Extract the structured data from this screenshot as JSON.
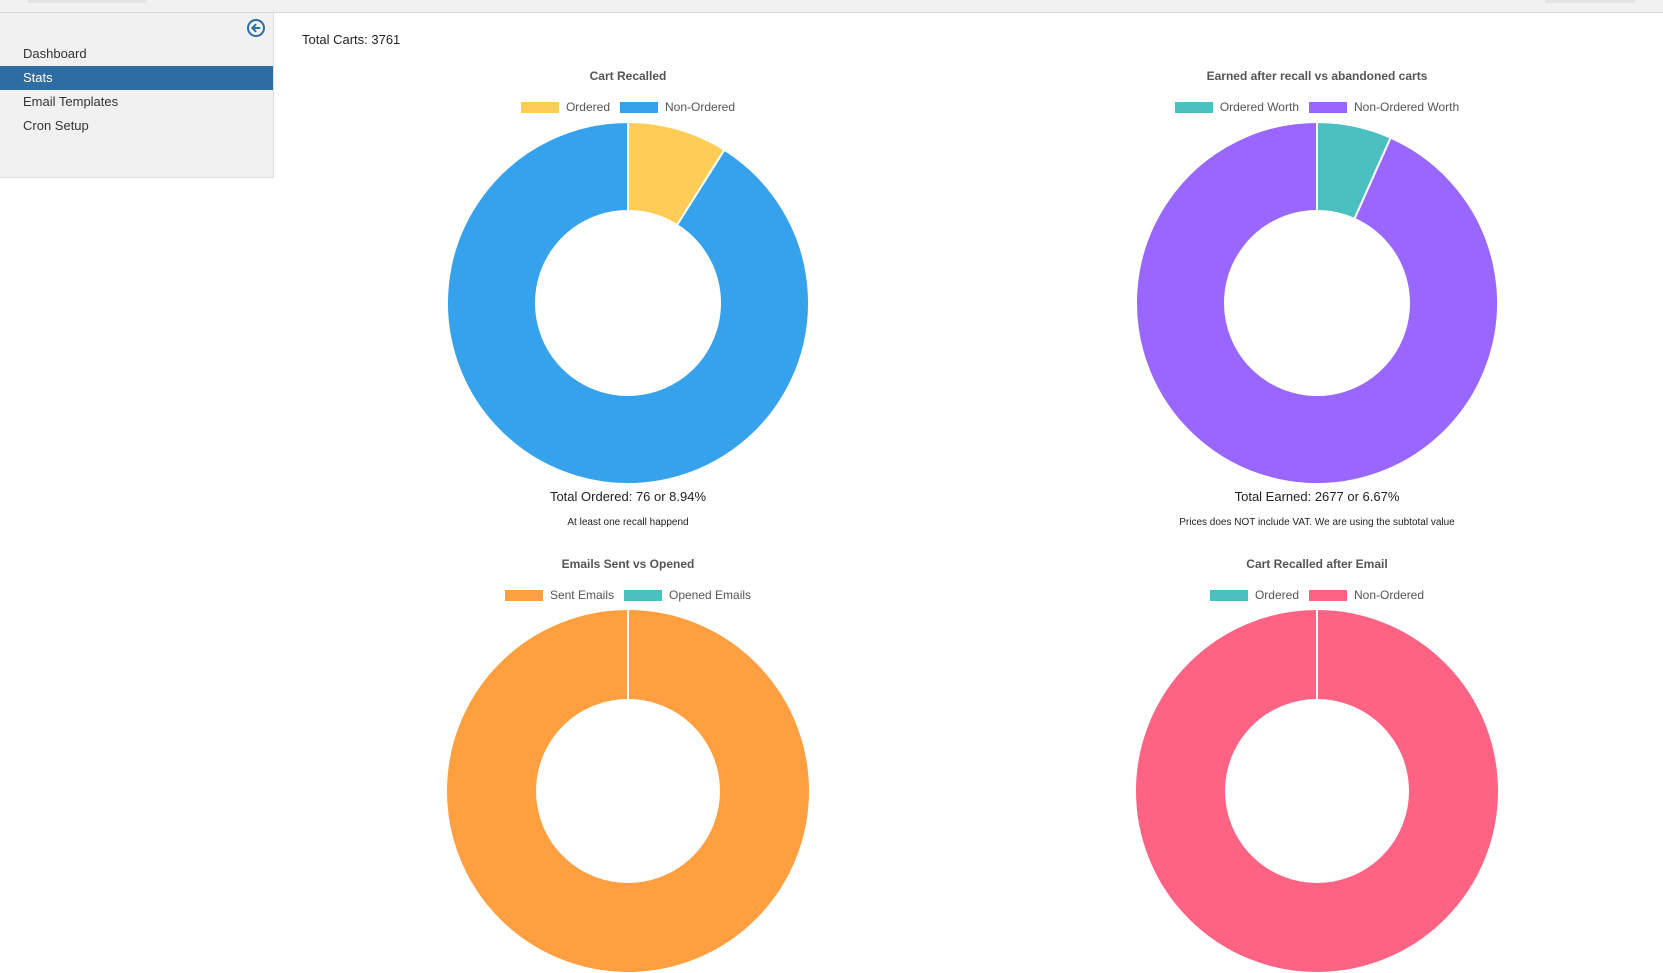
{
  "sidebar": {
    "items": [
      {
        "label": "Dashboard",
        "active": false
      },
      {
        "label": "Stats",
        "active": true
      },
      {
        "label": "Email Templates",
        "active": false
      },
      {
        "label": "Cron Setup",
        "active": false
      }
    ],
    "collapse_icon": "arrow-circle-left-icon"
  },
  "main": {
    "total_carts": "Total Carts: 3761"
  },
  "charts": [
    {
      "title": "Cart Recalled",
      "legend": [
        {
          "label": "Ordered",
          "color": "#ffcd56"
        },
        {
          "label": "Non-Ordered",
          "color": "#36a2eb"
        }
      ],
      "total": "Total Ordered: 76 or 8.94%",
      "note": "At least one recall happend"
    },
    {
      "title": "Earned after recall vs abandoned carts",
      "legend": [
        {
          "label": "Ordered Worth",
          "color": "#4bc0c0"
        },
        {
          "label": "Non-Ordered Worth",
          "color": "#9966ff"
        }
      ],
      "total": "Total Earned: 2677 or 6.67%",
      "note": "Prices does NOT include VAT. We are using the subtotal value"
    },
    {
      "title": "Emails Sent vs Opened",
      "legend": [
        {
          "label": "Sent Emails",
          "color": "#ff9f40"
        },
        {
          "label": "Opened Emails",
          "color": "#4bc0c0"
        }
      ],
      "total": "",
      "note": ""
    },
    {
      "title": "Cart Recalled after Email",
      "legend": [
        {
          "label": "Ordered",
          "color": "#4bc0c0"
        },
        {
          "label": "Non-Ordered",
          "color": "#ff6384"
        }
      ],
      "total": "",
      "note": ""
    }
  ],
  "chart_data": [
    {
      "type": "pie",
      "style": "doughnut",
      "title": "Cart Recalled",
      "categories": [
        "Ordered",
        "Non-Ordered"
      ],
      "values": [
        8.94,
        91.06
      ],
      "colors": [
        "#ffcd56",
        "#36a2eb"
      ]
    },
    {
      "type": "pie",
      "style": "doughnut",
      "title": "Earned after recall vs abandoned carts",
      "categories": [
        "Ordered Worth",
        "Non-Ordered Worth"
      ],
      "values": [
        6.67,
        93.33
      ],
      "colors": [
        "#4bc0c0",
        "#9966ff"
      ]
    },
    {
      "type": "pie",
      "style": "doughnut",
      "title": "Emails Sent vs Opened",
      "categories": [
        "Sent Emails",
        "Opened Emails"
      ],
      "values": [
        100,
        0
      ],
      "colors": [
        "#ff9f40",
        "#4bc0c0"
      ]
    },
    {
      "type": "pie",
      "style": "doughnut",
      "title": "Cart Recalled after Email",
      "categories": [
        "Ordered",
        "Non-Ordered"
      ],
      "values": [
        0,
        100
      ],
      "colors": [
        "#4bc0c0",
        "#ff6384"
      ]
    }
  ]
}
